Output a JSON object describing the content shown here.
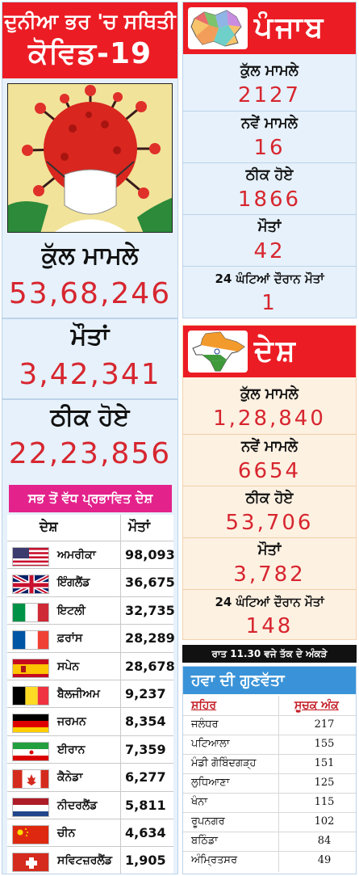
{
  "world": {
    "title_line1": "ਦੁਨੀਆ ਭਰ 'ਚ ਸਥਿਤੀ",
    "title_line2": "ਕੋਵਿਡ-19",
    "total_label": "ਕੁੱਲ ਮਾਮਲੇ",
    "total_value": "53,68,246",
    "deaths_label": "ਮੌਤਾਂ",
    "deaths_value": "3,42,341",
    "recovered_label": "ਠੀਕ ਹੋਏ",
    "recovered_value": "22,23,856"
  },
  "affected": {
    "title": "ਸਭ ਤੋਂ ਵੱਧ ਪ੍ਰਭਾਵਿਤ ਦੇਸ਼",
    "col_country": "ਦੇਸ਼",
    "col_deaths": "ਮੌਤਾਂ",
    "rows": [
      {
        "country": "ਅਮਰੀਕਾ",
        "deaths": "98,093",
        "flag": "usa-flag-icon"
      },
      {
        "country": "ਇੰਗਲੈਂਡ",
        "deaths": "36,675",
        "flag": "uk-flag-icon"
      },
      {
        "country": "ਇਟਲੀ",
        "deaths": "32,735",
        "flag": "italy-flag-icon"
      },
      {
        "country": "ਫ਼ਰਾਂਸ",
        "deaths": "28,289",
        "flag": "france-flag-icon"
      },
      {
        "country": "ਸਪੇਨ",
        "deaths": "28,678",
        "flag": "spain-flag-icon"
      },
      {
        "country": "ਬੈਲਜੀਅਮ",
        "deaths": "9,237",
        "flag": "belgium-flag-icon"
      },
      {
        "country": "ਜਰਮਨ",
        "deaths": "8,354",
        "flag": "germany-flag-icon"
      },
      {
        "country": "ਈਰਾਨ",
        "deaths": "7,359",
        "flag": "iran-flag-icon"
      },
      {
        "country": "ਕੈਨੇਡਾ",
        "deaths": "6,277",
        "flag": "canada-flag-icon"
      },
      {
        "country": "ਨੀਦਰਲੈਂਡ",
        "deaths": "5,811",
        "flag": "netherlands-flag-icon"
      },
      {
        "country": "ਚੀਨ",
        "deaths": "4,634",
        "flag": "china-flag-icon"
      },
      {
        "country": "ਸਵਿਟਜ਼ਰਲੈਂਡ",
        "deaths": "1,905",
        "flag": "switzerland-flag-icon"
      }
    ]
  },
  "punjab": {
    "title": "ਪੰਜਾਬ",
    "total_label": "ਕੁੱਲ ਮਾਮਲੇ",
    "total_value": "2127",
    "new_label": "ਨਵੇਂ ਮਾਮਲੇ",
    "new_value": "16",
    "recovered_label": "ਠੀਕ ਹੋਏ",
    "recovered_value": "1866",
    "deaths_label": "ਮੌਤਾਂ",
    "deaths_value": "42",
    "deaths24_label": "24 ਘੰਟਿਆਂ ਦੌਰਾਨ ਮੌਤਾਂ",
    "deaths24_value": "1"
  },
  "country": {
    "title": "ਦੇਸ਼",
    "total_label": "ਕੁੱਲ ਮਾਮਲੇ",
    "total_value": "1,28,840",
    "new_label": "ਨਵੇਂ ਮਾਮਲੇ",
    "new_value": "6654",
    "recovered_label": "ਠੀਕ ਹੋਏ",
    "recovered_value": "53,706",
    "deaths_label": "ਮੌਤਾਂ",
    "deaths_value": "3,782",
    "deaths24_label": "24 ਘੰਟਿਆਂ ਦੌਰਾਨ ਮੌਤਾਂ",
    "deaths24_value": "148"
  },
  "note": "ਰਾਤ 11.30 ਵਜੇ ਤੱਕ ਦੇ ਅੰਕੜੇ",
  "air_quality": {
    "title": "ਹਵਾ ਦੀ ਗੁਣਵੱਤਾ",
    "col_city": "ਸ਼ਹਿਰ",
    "col_index": "ਸੂਚਕ ਅੰਕ",
    "rows": [
      {
        "city": "ਜਲੰਧਰ",
        "index": "217"
      },
      {
        "city": "ਪਟਿਆਲਾ",
        "index": "155"
      },
      {
        "city": "ਮੰਡੀ ਗੋਬਿੰਦਗੜ੍ਹ",
        "index": "151"
      },
      {
        "city": "ਲੁਧਿਆਣਾ",
        "index": "125"
      },
      {
        "city": "ਖੰਨਾ",
        "index": "115"
      },
      {
        "city": "ਰੂਪਨਗਰ",
        "index": "102"
      },
      {
        "city": "ਬਠਿੰਡਾ",
        "index": "84"
      },
      {
        "city": "ਅੰਮ੍ਰਿਤਸਰ",
        "index": "49"
      }
    ]
  },
  "colors": {
    "headline_red": "#ec1c24",
    "number_red": "#d7262f",
    "pink": "#e3228c",
    "blue": "#3a93d8"
  }
}
